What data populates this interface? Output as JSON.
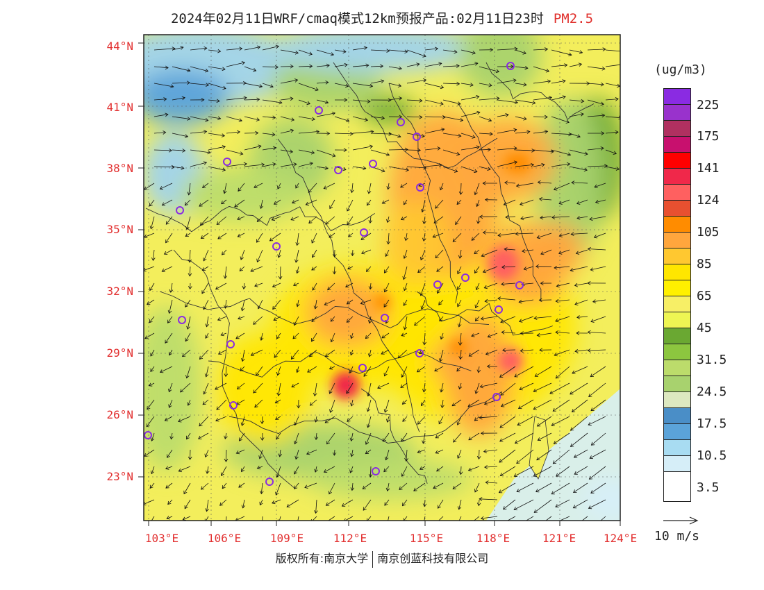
{
  "title": {
    "text": "2024年02月11日WRF/cmaq模式12km预报产品:02月11日23时",
    "pollutant": "PM2.5",
    "pollutant_color": "#e0302c"
  },
  "map": {
    "lat_labels": [
      "44°N",
      "41°N",
      "38°N",
      "35°N",
      "32°N",
      "29°N",
      "26°N",
      "23°N"
    ],
    "lon_labels": [
      "103°E",
      "106°E",
      "109°E",
      "112°E",
      "115°E",
      "118°E",
      "121°E",
      "124°E"
    ],
    "label_color": "#e23030"
  },
  "legend": {
    "unit": "(ug/m3)",
    "colors": [
      "#8a2be2",
      "#9932cc",
      "#b03060",
      "#c8106e",
      "#ff0000",
      "#f0284a",
      "#ff6060",
      "#e85030",
      "#ff8c00",
      "#ffa63d",
      "#ffc830",
      "#ffe600",
      "#fff000",
      "#f7ef66",
      "#eef553",
      "#6aa832",
      "#8cc63f",
      "#bcdc6b",
      "#a8d26e",
      "#dde8c0",
      "#4a8ec7",
      "#5ba3d9",
      "#a8dcf2",
      "#d6eef8",
      "#ffffff"
    ],
    "labels": [
      "225",
      "175",
      "141",
      "124",
      "105",
      "85",
      "65",
      "45",
      "31.5",
      "24.5",
      "17.5",
      "10.5",
      "3.5"
    ]
  },
  "wind_reference": "10 m/s",
  "copyright": {
    "part1": "版权所有:南京大学",
    "part2": "南京创蓝科技有限公司"
  }
}
